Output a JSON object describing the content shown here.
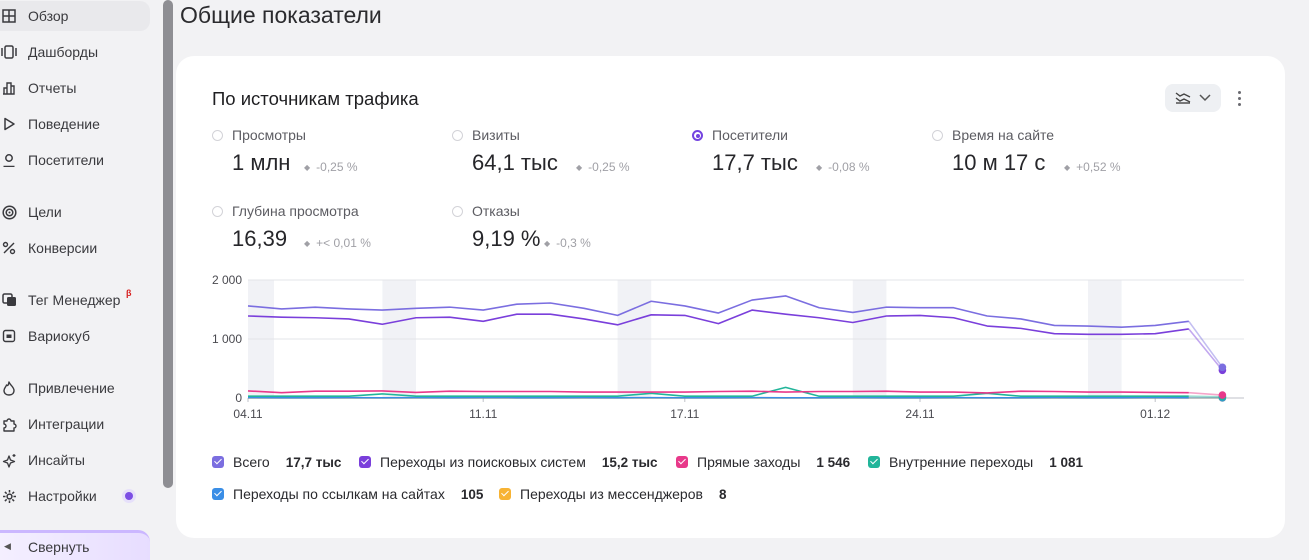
{
  "sidebar": {
    "items": [
      {
        "label": "Обзор",
        "icon": "grid-icon"
      },
      {
        "label": "Дашборды",
        "icon": "dashboard-icon"
      },
      {
        "label": "Отчеты",
        "icon": "bar-chart-icon"
      },
      {
        "label": "Поведение",
        "icon": "play-icon"
      },
      {
        "label": "Посетители",
        "icon": "user-icon"
      },
      {
        "label": "Цели",
        "icon": "target-icon"
      },
      {
        "label": "Конверсии",
        "icon": "percent-icon"
      },
      {
        "label": "Тег Менеджер",
        "icon": "tag-manager-icon",
        "badge": "β"
      },
      {
        "label": "Вариокуб",
        "icon": "variocube-icon"
      },
      {
        "label": "Привлечение",
        "icon": "flame-icon"
      },
      {
        "label": "Интеграции",
        "icon": "puzzle-icon"
      },
      {
        "label": "Инсайты",
        "icon": "sparkle-icon"
      },
      {
        "label": "Настройки",
        "icon": "gear-icon"
      }
    ],
    "collapse_label": "Свернуть"
  },
  "page": {
    "title": "Общие показатели"
  },
  "card": {
    "title": "По источникам трафика",
    "metrics": [
      {
        "label": "Просмотры",
        "value": "1 млн",
        "delta": "-0,25 %",
        "checked": false
      },
      {
        "label": "Визиты",
        "value": "64,1 тыс",
        "delta": "-0,25 %",
        "checked": false
      },
      {
        "label": "Посетители",
        "value": "17,7 тыс",
        "delta": "-0,08 %",
        "checked": true
      },
      {
        "label": "Время на сайте",
        "value": "10 м 17 с",
        "delta": "+0,52 %",
        "checked": false
      },
      {
        "label": "Глубина просмотра",
        "value": "16,39",
        "delta": "+< 0,01 %",
        "checked": false
      },
      {
        "label": "Отказы",
        "value": "9,19 %",
        "delta": "-0,3 %",
        "checked": false
      }
    ],
    "legend": [
      {
        "label": "Всего",
        "value": "17,7 тыс",
        "color": "#7b6ee0"
      },
      {
        "label": "Переходы из поисковых систем",
        "value": "15,2 тыс",
        "color": "#7a3fdb"
      },
      {
        "label": "Прямые заходы",
        "value": "1 546",
        "color": "#e8398a"
      },
      {
        "label": "Внутренние переходы",
        "value": "1 081",
        "color": "#22b59a"
      },
      {
        "label": "Переходы по ссылкам на сайтах",
        "value": "105",
        "color": "#3a8ee6"
      },
      {
        "label": "Переходы из мессенджеров",
        "value": "8",
        "color": "#f7b334"
      }
    ]
  },
  "chart_data": {
    "type": "line",
    "y_ticks": [
      "2 000",
      "1 000",
      "0"
    ],
    "x_ticks": [
      "04.11",
      "11.11",
      "17.11",
      "24.11",
      "01.12"
    ],
    "ylim": [
      0,
      2000
    ],
    "x_days": [
      "04.11",
      "05.11",
      "06.11",
      "07.11",
      "08.11",
      "09.11",
      "10.11",
      "11.11",
      "12.11",
      "13.11",
      "14.11",
      "15.11",
      "16.11",
      "17.11",
      "18.11",
      "19.11",
      "20.11",
      "21.11",
      "22.11",
      "23.11",
      "24.11",
      "25.11",
      "26.11",
      "27.11",
      "28.11",
      "29.11",
      "30.11",
      "01.12",
      "02.12",
      "03.12"
    ],
    "series": [
      {
        "name": "Всего",
        "color": "#7b6ee0",
        "values": [
          1560,
          1510,
          1540,
          1510,
          1490,
          1520,
          1540,
          1490,
          1590,
          1610,
          1520,
          1400,
          1640,
          1560,
          1440,
          1660,
          1730,
          1530,
          1450,
          1540,
          1530,
          1530,
          1390,
          1340,
          1230,
          1220,
          1200,
          1230,
          1300,
          520
        ]
      },
      {
        "name": "Переходы из поисковых систем",
        "color": "#7a3fdb",
        "values": [
          1390,
          1370,
          1360,
          1340,
          1250,
          1360,
          1370,
          1300,
          1420,
          1420,
          1340,
          1240,
          1410,
          1400,
          1260,
          1490,
          1420,
          1360,
          1280,
          1390,
          1400,
          1360,
          1220,
          1180,
          1090,
          1080,
          1080,
          1090,
          1170,
          470
        ]
      },
      {
        "name": "Прямые заходы",
        "color": "#e8398a",
        "values": [
          120,
          90,
          115,
          115,
          120,
          95,
          115,
          110,
          110,
          110,
          100,
          100,
          100,
          100,
          110,
          115,
          100,
          110,
          110,
          115,
          100,
          100,
          85,
          115,
          110,
          100,
          100,
          95,
          90,
          50
        ]
      },
      {
        "name": "Внутренние переходы",
        "color": "#22b59a",
        "values": [
          30,
          30,
          30,
          30,
          70,
          30,
          30,
          30,
          30,
          30,
          30,
          30,
          80,
          30,
          30,
          30,
          180,
          30,
          30,
          30,
          30,
          30,
          80,
          30,
          30,
          30,
          30,
          30,
          30,
          20
        ]
      },
      {
        "name": "Переходы по ссылкам на сайтах",
        "color": "#3a8ee6",
        "values": [
          5,
          4,
          4,
          5,
          4,
          5,
          4,
          5,
          4,
          4,
          5,
          4,
          5,
          4,
          4,
          5,
          4,
          4,
          5,
          4,
          4,
          5,
          4,
          4,
          5,
          4,
          4,
          5,
          4,
          3
        ]
      },
      {
        "name": "Переходы из мессенджеров",
        "color": "#f7b334",
        "values": [
          0,
          0,
          0,
          0,
          0,
          0,
          0,
          0,
          0,
          0,
          0,
          0,
          0,
          0,
          0,
          0,
          0,
          0,
          0,
          0,
          0,
          0,
          0,
          0,
          0,
          0,
          0,
          0,
          0,
          0
        ]
      }
    ],
    "weekend_bands": [
      [
        "08.11",
        "09.11"
      ],
      [
        "15.11",
        "16.11"
      ],
      [
        "22.11",
        "23.11"
      ],
      [
        "29.11",
        "30.11"
      ],
      [
        "04.11",
        "04.11"
      ]
    ]
  }
}
